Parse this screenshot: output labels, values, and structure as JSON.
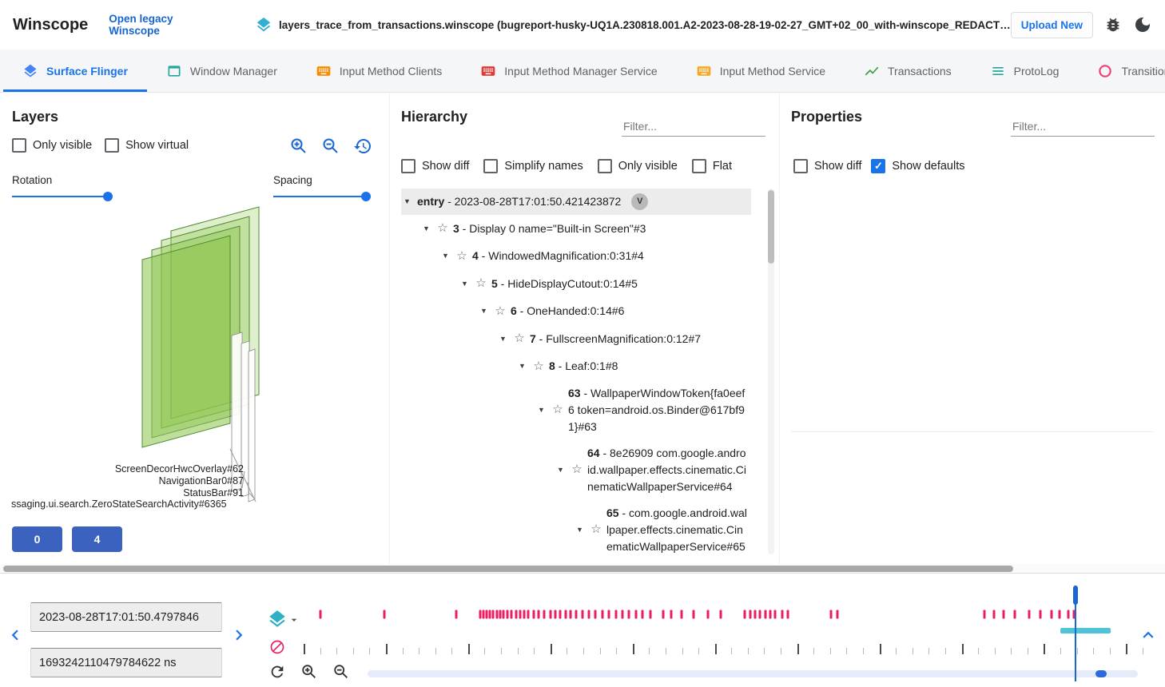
{
  "topbar": {
    "title": "Winscope",
    "legacy_link": "Open legacy Winscope",
    "trace_file_icon": "layers",
    "trace_file": "layers_trace_from_transactions.winscope (bugreport-husky-UQ1A.230818.001.A2-2023-08-28-19-02-27_GMT+02_00_with-winscope_REDACTED.zip)",
    "upload_button": "Upload New",
    "icons": [
      "bug-report",
      "dark-mode"
    ]
  },
  "tabs": [
    {
      "label": "Surface Flinger",
      "icon": "layers",
      "color": "#4285f4",
      "active": true
    },
    {
      "label": "Window Manager",
      "icon": "window",
      "color": "#26a69a",
      "active": false
    },
    {
      "label": "Input Method Clients",
      "icon": "keyboard",
      "color": "#fb8c00",
      "active": false
    },
    {
      "label": "Input Method Manager Service",
      "icon": "keyboard",
      "color": "#e53935",
      "active": false
    },
    {
      "label": "Input Method Service",
      "icon": "keyboard",
      "color": "#f9a825",
      "active": false
    },
    {
      "label": "Transactions",
      "icon": "chart",
      "color": "#43a047",
      "active": false
    },
    {
      "label": "ProtoLog",
      "icon": "list",
      "color": "#26a69a",
      "active": false
    },
    {
      "label": "Transitions",
      "icon": "transition",
      "color": "#ec407a",
      "active": false
    }
  ],
  "layers_panel": {
    "title": "Layers",
    "checkboxes": [
      {
        "label": "Only visible",
        "checked": false
      },
      {
        "label": "Show virtual",
        "checked": false
      }
    ],
    "toolbar_icons": [
      "zoom-in",
      "zoom-out",
      "history"
    ],
    "rotation_label": "Rotation",
    "rotation_value": 1,
    "spacing_label": "Spacing",
    "spacing_value": 0.97,
    "layer_labels": [
      "ScreenDecorHwcOverlay#62",
      "NavigationBar0#87",
      "StatusBar#91",
      "ssaging.ui.search.ZeroStateSearchActivity#6365"
    ],
    "buttons": [
      "0",
      "4"
    ]
  },
  "hierarchy_panel": {
    "title": "Hierarchy",
    "filter_placeholder": "Filter...",
    "checkboxes": [
      {
        "label": "Show diff",
        "checked": false
      },
      {
        "label": "Simplify names",
        "checked": false
      },
      {
        "label": "Only visible",
        "checked": false
      },
      {
        "label": "Flat",
        "checked": false
      }
    ],
    "tree": [
      {
        "id": "entry",
        "text": "2023-08-28T17:01:50.421423872",
        "badge": "V",
        "indent": 0,
        "star": false,
        "selected": true
      },
      {
        "id": "3",
        "text": "Display 0 name=\"Built-in Screen\"#3",
        "indent": 1,
        "star": true
      },
      {
        "id": "4",
        "text": "WindowedMagnification:0:31#4",
        "indent": 2,
        "star": true
      },
      {
        "id": "5",
        "text": "HideDisplayCutout:0:14#5",
        "indent": 3,
        "star": true
      },
      {
        "id": "6",
        "text": "OneHanded:0:14#6",
        "indent": 4,
        "star": true
      },
      {
        "id": "7",
        "text": "FullscreenMagnification:0:12#7",
        "indent": 5,
        "star": true
      },
      {
        "id": "8",
        "text": "Leaf:0:1#8",
        "indent": 6,
        "star": true
      },
      {
        "id": "63",
        "text": "WallpaperWindowToken{fa0eef6 token=android.os.Binder@617bf91}#63",
        "indent": 7,
        "star": true
      },
      {
        "id": "64",
        "text": "8e26909 com.google.android.wallpaper.effects.cinematic.CinematicWallpaperService#64",
        "indent": 8,
        "star": true
      },
      {
        "id": "65",
        "text": "com.google.android.wallpaper.effects.cinematic.CinematicWallpaperService#65",
        "indent": 9,
        "star": true
      }
    ]
  },
  "properties_panel": {
    "title": "Properties",
    "filter_placeholder": "Filter...",
    "checkboxes": [
      {
        "label": "Show diff",
        "checked": false
      },
      {
        "label": "Show defaults",
        "checked": true
      }
    ]
  },
  "timeline": {
    "start_time": "2023-08-28T17:01:50.4797846",
    "ns_time": "1693242110479784622 ns",
    "trace_row_icons": [
      "layers",
      "block"
    ],
    "tool_icons": [
      "refresh",
      "zoom-in",
      "zoom-out"
    ],
    "cursor": 0.919,
    "selection": {
      "start": 0.902,
      "end": 0.962
    },
    "slider_thumb": 0.952,
    "ruler": {
      "count": 52,
      "major_every": 5
    },
    "markers": [
      0.02,
      0.096,
      0.182,
      0.21,
      0.214,
      0.218,
      0.222,
      0.226,
      0.23,
      0.234,
      0.238,
      0.243,
      0.248,
      0.253,
      0.258,
      0.263,
      0.268,
      0.274,
      0.28,
      0.287,
      0.294,
      0.3,
      0.306,
      0.312,
      0.318,
      0.325,
      0.332,
      0.34,
      0.348,
      0.356,
      0.364,
      0.372,
      0.38,
      0.388,
      0.396,
      0.404,
      0.413,
      0.429,
      0.438,
      0.45,
      0.465,
      0.482,
      0.497,
      0.526,
      0.532,
      0.538,
      0.544,
      0.55,
      0.556,
      0.562,
      0.57,
      0.577,
      0.629,
      0.636,
      0.811,
      0.823,
      0.834,
      0.848,
      0.865,
      0.878,
      0.891,
      0.901,
      0.911,
      0.918
    ]
  },
  "colors": {
    "accent_blue": "#1a73e8",
    "marker_pink": "#e91e63",
    "selection_cyan": "#4fc3d7",
    "layer_green": "#8bc34a",
    "button_blue": "#3b62be"
  }
}
